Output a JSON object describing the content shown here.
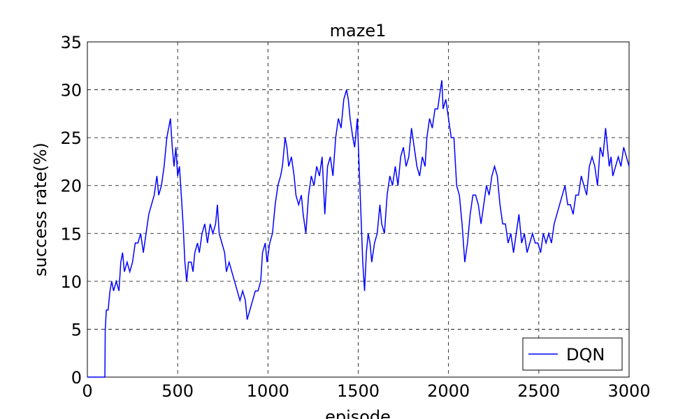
{
  "chart_data": {
    "type": "line",
    "title": "maze1",
    "x_label": "episode",
    "y_label": "success rate(%)",
    "x": [
      0,
      97,
      99,
      105,
      115,
      125,
      135,
      145,
      160,
      175,
      185,
      195,
      205,
      220,
      235,
      250,
      265,
      280,
      295,
      310,
      325,
      340,
      355,
      370,
      385,
      395,
      410,
      425,
      440,
      450,
      460,
      470,
      480,
      490,
      500,
      510,
      520,
      530,
      540,
      550,
      560,
      575,
      585,
      595,
      610,
      620,
      635,
      650,
      665,
      680,
      695,
      710,
      720,
      730,
      745,
      760,
      770,
      785,
      800,
      815,
      830,
      845,
      860,
      875,
      885,
      900,
      915,
      930,
      945,
      960,
      970,
      985,
      995,
      1010,
      1025,
      1040,
      1055,
      1070,
      1080,
      1095,
      1105,
      1115,
      1130,
      1145,
      1155,
      1170,
      1185,
      1195,
      1210,
      1225,
      1240,
      1255,
      1270,
      1285,
      1300,
      1315,
      1330,
      1345,
      1360,
      1375,
      1390,
      1405,
      1420,
      1435,
      1445,
      1455,
      1470,
      1480,
      1495,
      1505,
      1515,
      1525,
      1535,
      1545,
      1555,
      1565,
      1575,
      1590,
      1605,
      1620,
      1630,
      1645,
      1660,
      1675,
      1690,
      1705,
      1720,
      1735,
      1750,
      1765,
      1780,
      1795,
      1810,
      1825,
      1840,
      1855,
      1870,
      1880,
      1895,
      1910,
      1925,
      1940,
      1955,
      1963,
      1970,
      1985,
      2000,
      2015,
      2030,
      2045,
      2060,
      2075,
      2090,
      2105,
      2120,
      2135,
      2150,
      2165,
      2180,
      2195,
      2210,
      2225,
      2240,
      2255,
      2270,
      2285,
      2300,
      2315,
      2330,
      2345,
      2360,
      2375,
      2390,
      2405,
      2420,
      2435,
      2450,
      2465,
      2480,
      2495,
      2510,
      2525,
      2540,
      2555,
      2570,
      2585,
      2600,
      2615,
      2630,
      2645,
      2660,
      2675,
      2690,
      2705,
      2720,
      2735,
      2750,
      2765,
      2780,
      2795,
      2810,
      2825,
      2840,
      2855,
      2870,
      2880,
      2890,
      2900,
      2910,
      2925,
      2940,
      2955,
      2970,
      2985,
      3000
    ],
    "series": [
      {
        "name": "DQN",
        "color": "#0000ff",
        "values": [
          0,
          0,
          5,
          7,
          7,
          9,
          10,
          9,
          10,
          9,
          12,
          13,
          11,
          12,
          11,
          12,
          14,
          14,
          15,
          13,
          15,
          17,
          18,
          19,
          21,
          19,
          20,
          22,
          25,
          26,
          27,
          24,
          22,
          24,
          21,
          22,
          19,
          16,
          12,
          10,
          12,
          12,
          11,
          13,
          14,
          13,
          15,
          16,
          14,
          16,
          15,
          16,
          18,
          15,
          14,
          13,
          11,
          12,
          11,
          10,
          9,
          8,
          9,
          8,
          6,
          7,
          8,
          9,
          9,
          10,
          13,
          14,
          12,
          14,
          15,
          18,
          20,
          21,
          22,
          25,
          24,
          22,
          23,
          21,
          19,
          18,
          19,
          17,
          15,
          19,
          21,
          20,
          22,
          21,
          23,
          17,
          22,
          23,
          21,
          25,
          27,
          26,
          29,
          30,
          29,
          27,
          25,
          24,
          27,
          22,
          17,
          12,
          9,
          13,
          15,
          14,
          12,
          14,
          15,
          18,
          16,
          15,
          19,
          21,
          20,
          22,
          20,
          23,
          24,
          22,
          23,
          26,
          24,
          22,
          21,
          23,
          22,
          25,
          27,
          26,
          28,
          28,
          30,
          31,
          28,
          29,
          27,
          25,
          25,
          20,
          19,
          16,
          12,
          14,
          17,
          19,
          19,
          18,
          16,
          18,
          20,
          19,
          21,
          22,
          21,
          18,
          16,
          16,
          14,
          15,
          13,
          15,
          17,
          14,
          15,
          13,
          14,
          15,
          14,
          14,
          13,
          15,
          14,
          15,
          14,
          16,
          17,
          18,
          19,
          20,
          18,
          18,
          17,
          19,
          19,
          21,
          20,
          19,
          22,
          23,
          22,
          20,
          24,
          23,
          26,
          24,
          22,
          23,
          21,
          22,
          23,
          22,
          24,
          23,
          22
        ]
      }
    ],
    "xlim": [
      0,
      3000
    ],
    "xticks": [
      0,
      500,
      1000,
      1500,
      2000,
      2500,
      3000
    ],
    "ylim": [
      0,
      35
    ],
    "yticks": [
      0,
      5,
      10,
      15,
      20,
      25,
      30,
      35
    ],
    "grid": true,
    "legend": "lower right"
  }
}
